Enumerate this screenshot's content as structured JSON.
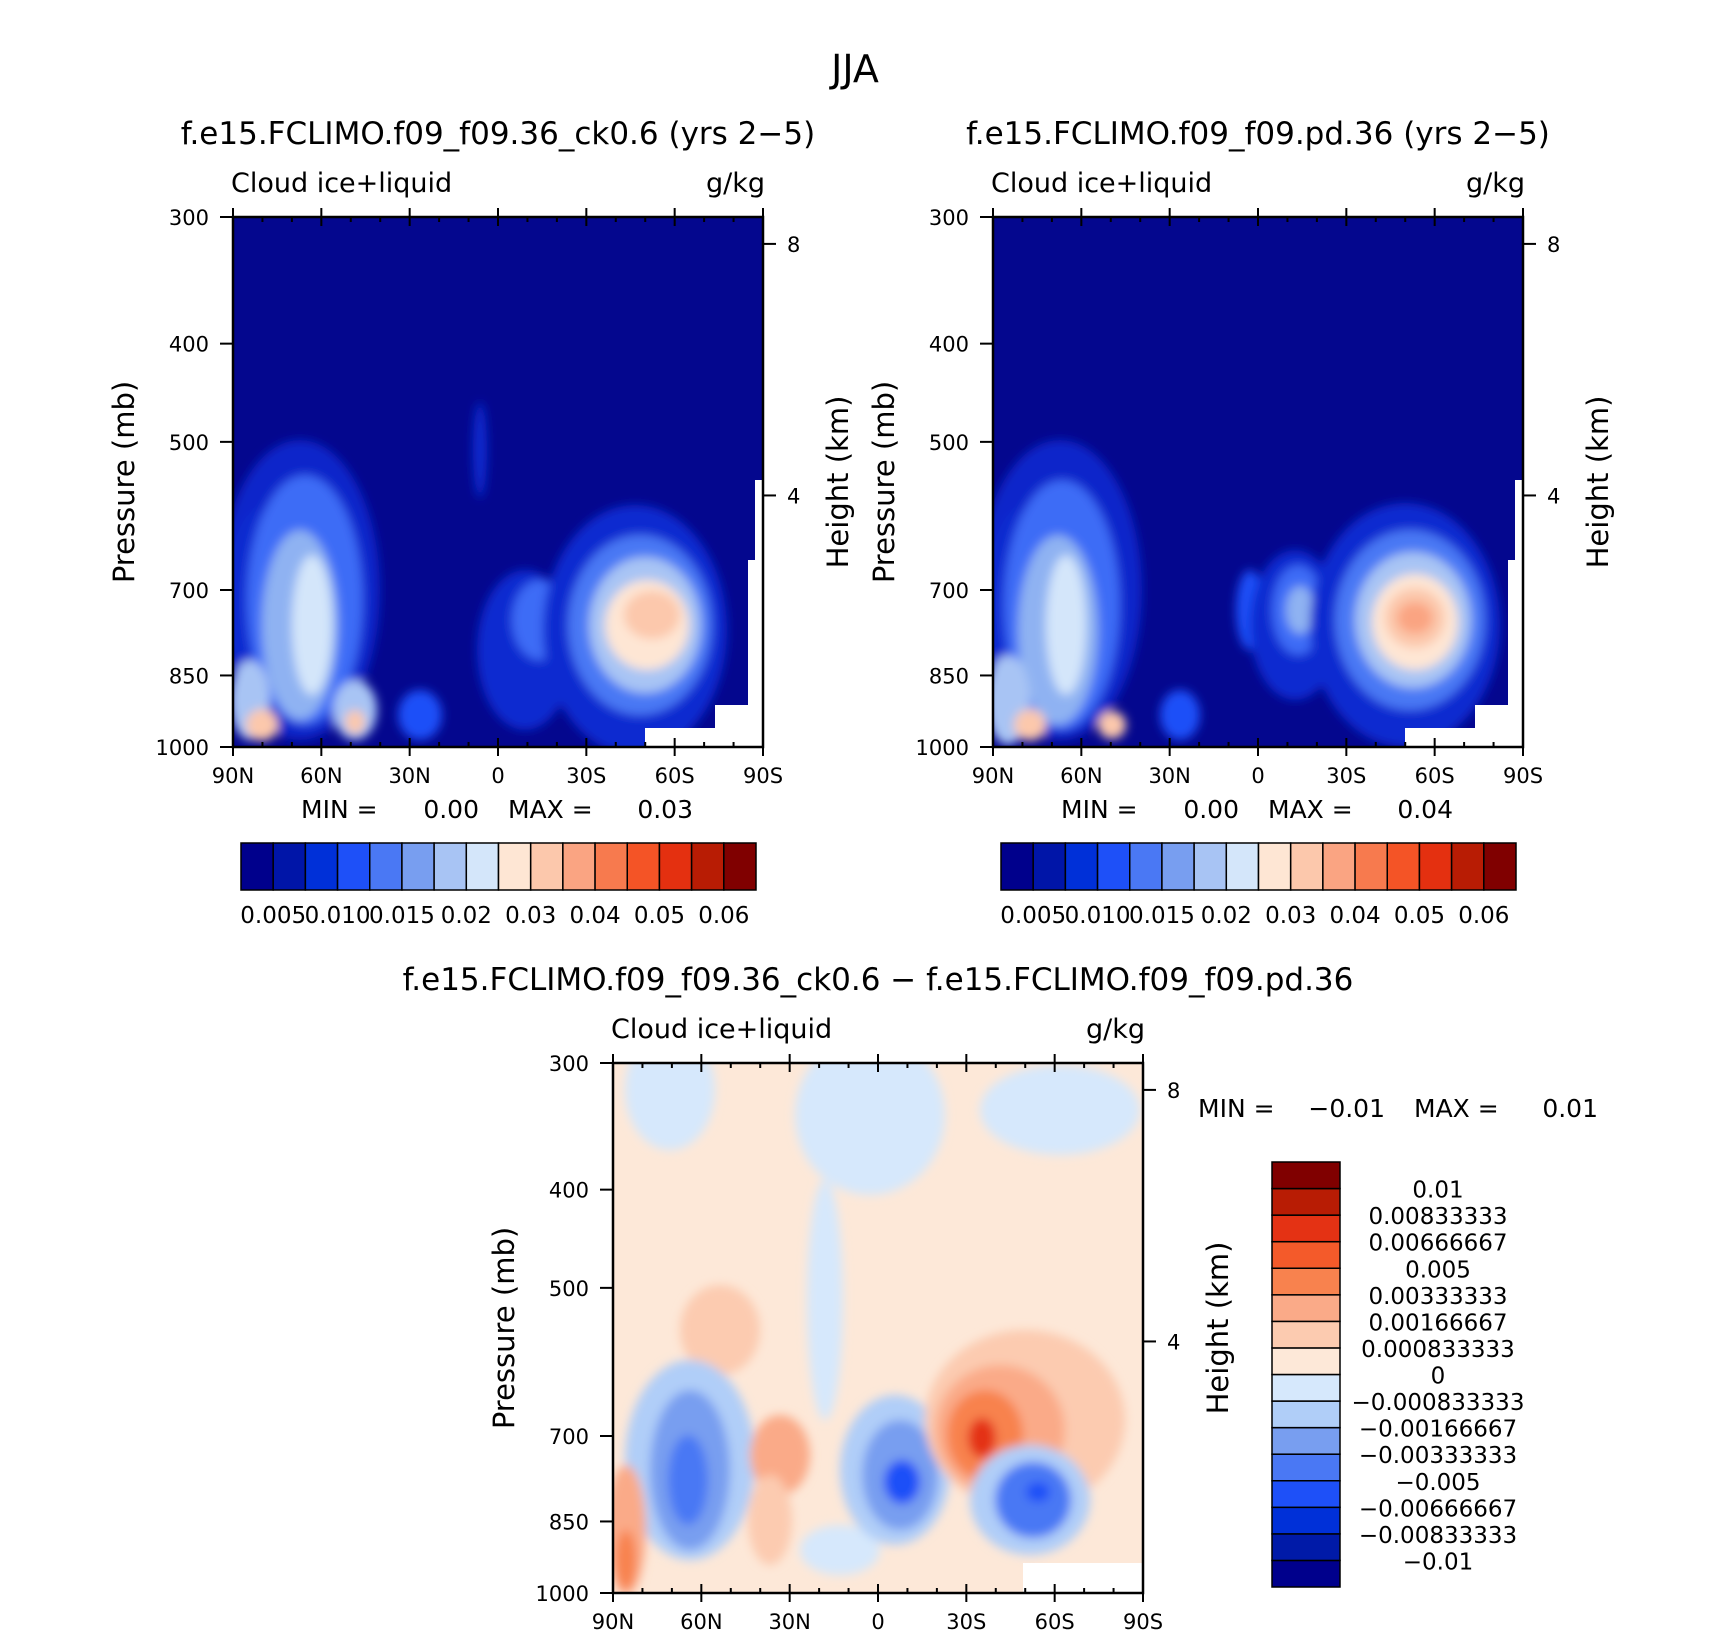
{
  "main_title": "JJA",
  "colors": {
    "bar_seq": [
      "#00008c",
      "#0015a8",
      "#0030d8",
      "#1e50f8",
      "#4a78f4",
      "#789ef0",
      "#a8c4f4",
      "#d4e6fa",
      "#fee6d4",
      "#fcc8ac",
      "#faa482",
      "#f77a4e",
      "#f45426",
      "#e43010",
      "#b81c04",
      "#800000"
    ],
    "bar_div": [
      "#00008c",
      "#001aa8",
      "#0030d8",
      "#1e50f8",
      "#4a78f4",
      "#789ef0",
      "#b0cef8",
      "#d6e8fc",
      "#fde8d8",
      "#fccbb0",
      "#faaa88",
      "#f8824e",
      "#f45a2a",
      "#e43214",
      "#b81c04",
      "#800000"
    ],
    "map_deep": "#04078e",
    "frame": "#000000"
  },
  "chart_data": [
    {
      "type": "heatmap",
      "title": "f.e15.FCLIMO.f09_f09.36_ck0.6 (yrs 2−5)",
      "left_label": "Cloud ice+liquid",
      "units": "g/kg",
      "ylabel": "Pressure (mb)",
      "ylabel_right": "Height (km)",
      "x_ticks": [
        "90N",
        "60N",
        "30N",
        "0",
        "30S",
        "60S",
        "90S"
      ],
      "y_ticks": [
        "300",
        "400",
        "500",
        "700",
        "850",
        "1000"
      ],
      "y_ticks_right": [
        "8",
        "4"
      ],
      "ylim": [
        1000,
        300
      ],
      "min_label": "MIN =",
      "min_value": "0.00",
      "max_label": "MAX =",
      "max_value": "0.03",
      "colorbar_labels": [
        "0.005",
        "0.010",
        "0.015",
        "0.02",
        "0.03",
        "0.04",
        "0.05",
        "0.06"
      ]
    },
    {
      "type": "heatmap",
      "title": "f.e15.FCLIMO.f09_f09.pd.36 (yrs 2−5)",
      "left_label": "Cloud ice+liquid",
      "units": "g/kg",
      "ylabel": "Pressure (mb)",
      "ylabel_right": "Height (km)",
      "x_ticks": [
        "90N",
        "60N",
        "30N",
        "0",
        "30S",
        "60S",
        "90S"
      ],
      "y_ticks": [
        "300",
        "400",
        "500",
        "700",
        "850",
        "1000"
      ],
      "y_ticks_right": [
        "8",
        "4"
      ],
      "ylim": [
        1000,
        300
      ],
      "min_label": "MIN =",
      "min_value": "0.00",
      "max_label": "MAX =",
      "max_value": "0.04",
      "colorbar_labels": [
        "0.005",
        "0.010",
        "0.015",
        "0.02",
        "0.03",
        "0.04",
        "0.05",
        "0.06"
      ]
    },
    {
      "type": "heatmap",
      "title": "f.e15.FCLIMO.f09_f09.36_ck0.6 − f.e15.FCLIMO.f09_f09.pd.36",
      "left_label": "Cloud ice+liquid",
      "units": "g/kg",
      "ylabel": "Pressure (mb)",
      "ylabel_right": "Height (km)",
      "x_ticks": [
        "90N",
        "60N",
        "30N",
        "0",
        "30S",
        "60S",
        "90S"
      ],
      "y_ticks": [
        "300",
        "400",
        "500",
        "700",
        "850",
        "1000"
      ],
      "y_ticks_right": [
        "8",
        "4"
      ],
      "ylim": [
        1000,
        300
      ],
      "min_label": "MIN =",
      "min_value": "−0.01",
      "max_label": "MAX =",
      "max_value": "0.01",
      "colorbar_labels": [
        "0.01",
        "0.00833333",
        "0.00666667",
        "0.005",
        "0.00333333",
        "0.00166667",
        "0.000833333",
        "0",
        "−0.000833333",
        "−0.00166667",
        "−0.00333333",
        "−0.005",
        "−0.00666667",
        "−0.00833333",
        "−0.01"
      ]
    }
  ]
}
